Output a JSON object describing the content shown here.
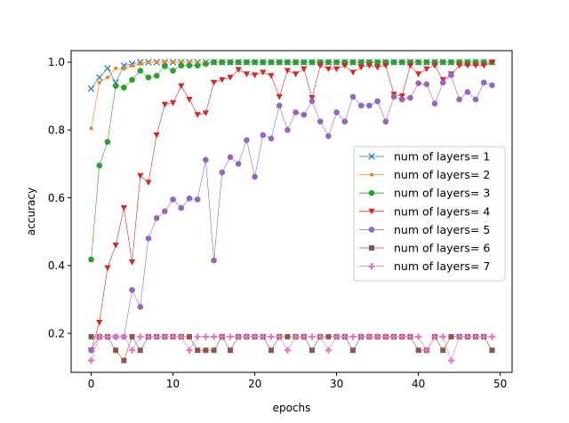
{
  "chart_data": {
    "type": "line",
    "title": "",
    "xlabel": "epochs",
    "ylabel": "accuracy",
    "xlim": [
      -2.45,
      51.45
    ],
    "ylim": [
      0.0849,
      1.0341
    ],
    "xticks": [
      0,
      10,
      20,
      30,
      40,
      50
    ],
    "yticks": [
      0.2,
      0.4,
      0.6,
      0.8,
      1.0
    ],
    "xtick_labels": [
      "0",
      "10",
      "20",
      "30",
      "40",
      "50"
    ],
    "ytick_labels": [
      "0.2",
      "0.4",
      "0.6",
      "0.8",
      "1.0"
    ],
    "grid": false,
    "legend_position": "center-right",
    "x": [
      0,
      1,
      2,
      3,
      4,
      5,
      6,
      7,
      8,
      9,
      10,
      11,
      12,
      13,
      14,
      15,
      16,
      17,
      18,
      19,
      20,
      21,
      22,
      23,
      24,
      25,
      26,
      27,
      28,
      29,
      30,
      31,
      32,
      33,
      34,
      35,
      36,
      37,
      38,
      39,
      40,
      41,
      42,
      43,
      44,
      45,
      46,
      47,
      48,
      49
    ],
    "series": [
      {
        "name": "num of layers= 1",
        "color": "#1f77b4",
        "marker": "x",
        "values": [
          0.922,
          0.955,
          0.982,
          0.94,
          0.99,
          0.995,
          1.0,
          1.0,
          1.0,
          1.0,
          1.0,
          1.0,
          1.0,
          1.0,
          1.0,
          1.0,
          1.0,
          1.0,
          1.0,
          1.0,
          1.0,
          1.0,
          1.0,
          1.0,
          1.0,
          1.0,
          1.0,
          1.0,
          1.0,
          1.0,
          1.0,
          1.0,
          1.0,
          1.0,
          1.0,
          1.0,
          1.0,
          1.0,
          1.0,
          1.0,
          1.0,
          1.0,
          1.0,
          1.0,
          1.0,
          1.0,
          1.0,
          1.0,
          1.0,
          1.0
        ]
      },
      {
        "name": "num of layers= 2",
        "color": "#ff7f0e",
        "marker": "dot",
        "values": [
          0.805,
          0.94,
          0.955,
          0.982,
          0.98,
          0.99,
          0.995,
          1.0,
          1.0,
          1.0,
          1.0,
          1.0,
          1.0,
          1.0,
          1.0,
          1.0,
          1.0,
          1.0,
          1.0,
          1.0,
          1.0,
          1.0,
          1.0,
          1.0,
          1.0,
          1.0,
          1.0,
          1.0,
          1.0,
          1.0,
          1.0,
          1.0,
          1.0,
          1.0,
          1.0,
          1.0,
          1.0,
          1.0,
          1.0,
          1.0,
          1.0,
          1.0,
          1.0,
          1.0,
          1.0,
          1.0,
          1.0,
          1.0,
          1.0,
          1.0
        ]
      },
      {
        "name": "num of layers= 3",
        "color": "#2ca02c",
        "marker": "circle",
        "values": [
          0.418,
          0.695,
          0.765,
          0.93,
          0.925,
          0.948,
          0.975,
          0.955,
          0.96,
          0.988,
          0.975,
          0.99,
          0.99,
          0.99,
          0.995,
          1.0,
          1.0,
          1.0,
          1.0,
          1.0,
          1.0,
          1.0,
          1.0,
          1.0,
          1.0,
          1.0,
          1.0,
          1.0,
          1.0,
          1.0,
          1.0,
          1.0,
          1.0,
          1.0,
          1.0,
          1.0,
          1.0,
          1.0,
          1.0,
          1.0,
          1.0,
          1.0,
          1.0,
          1.0,
          1.0,
          1.0,
          1.0,
          1.0,
          1.0,
          1.0
        ]
      },
      {
        "name": "num of layers= 4",
        "color": "#d62728",
        "marker": "triangle-down",
        "values": [
          0.15,
          0.232,
          0.393,
          0.46,
          0.57,
          0.41,
          0.665,
          0.645,
          0.785,
          0.875,
          0.88,
          0.93,
          0.89,
          0.845,
          0.85,
          0.94,
          0.948,
          0.955,
          0.978,
          0.965,
          0.962,
          0.97,
          0.96,
          0.898,
          0.975,
          0.965,
          0.98,
          0.895,
          0.99,
          0.98,
          0.98,
          0.99,
          0.97,
          0.985,
          0.99,
          0.985,
          0.99,
          0.905,
          0.9,
          0.99,
          0.965,
          0.98,
          0.99,
          0.948,
          0.965,
          0.99,
          0.99,
          0.99,
          0.99,
          1.0
        ]
      },
      {
        "name": "num of layers= 5",
        "color": "#9467bd",
        "marker": "circle",
        "values": [
          0.15,
          0.19,
          0.19,
          0.19,
          0.19,
          0.328,
          0.278,
          0.48,
          0.54,
          0.56,
          0.595,
          0.57,
          0.598,
          0.595,
          0.712,
          0.415,
          0.675,
          0.72,
          0.7,
          0.77,
          0.662,
          0.785,
          0.775,
          0.872,
          0.8,
          0.852,
          0.845,
          0.885,
          0.825,
          0.782,
          0.852,
          0.825,
          0.898,
          0.872,
          0.872,
          0.885,
          0.825,
          0.898,
          0.89,
          0.895,
          0.938,
          0.935,
          0.878,
          0.94,
          0.962,
          0.89,
          0.912,
          0.89,
          0.94,
          0.932
        ]
      },
      {
        "name": "num of layers= 6",
        "color": "#8c564b",
        "marker": "square",
        "values": [
          0.19,
          0.19,
          0.19,
          0.15,
          0.12,
          0.19,
          0.15,
          0.19,
          0.19,
          0.19,
          0.19,
          0.19,
          0.19,
          0.15,
          0.15,
          0.15,
          0.19,
          0.15,
          0.19,
          0.19,
          0.19,
          0.19,
          0.15,
          0.19,
          0.19,
          0.19,
          0.19,
          0.15,
          0.19,
          0.19,
          0.19,
          0.19,
          0.15,
          0.19,
          0.19,
          0.19,
          0.19,
          0.19,
          0.19,
          0.19,
          0.15,
          0.15,
          0.19,
          0.15,
          0.19,
          0.19,
          0.19,
          0.19,
          0.19,
          0.15
        ]
      },
      {
        "name": "num of layers= 7",
        "color": "#e377c2",
        "marker": "plus",
        "values": [
          0.12,
          0.19,
          0.19,
          0.19,
          0.19,
          0.15,
          0.19,
          0.19,
          0.19,
          0.19,
          0.19,
          0.19,
          0.15,
          0.19,
          0.19,
          0.19,
          0.19,
          0.19,
          0.19,
          0.19,
          0.19,
          0.19,
          0.19,
          0.19,
          0.15,
          0.19,
          0.19,
          0.19,
          0.19,
          0.15,
          0.19,
          0.19,
          0.19,
          0.19,
          0.19,
          0.19,
          0.19,
          0.19,
          0.19,
          0.19,
          0.19,
          0.15,
          0.19,
          0.19,
          0.12,
          0.19,
          0.19,
          0.19,
          0.19,
          0.19
        ]
      }
    ]
  }
}
